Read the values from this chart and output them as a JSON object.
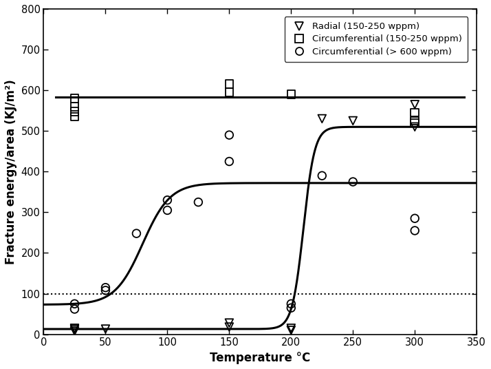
{
  "title": "",
  "xlabel": "Temperature °C",
  "ylabel": "Fracture energy/area (KJ/m²)",
  "xlim": [
    0,
    350
  ],
  "ylim": [
    0,
    800
  ],
  "xticks": [
    0,
    50,
    100,
    150,
    200,
    250,
    300,
    350
  ],
  "yticks": [
    0,
    100,
    200,
    300,
    400,
    500,
    600,
    700,
    800
  ],
  "dotted_line_y": 100,
  "radial_x": [
    25,
    25,
    25,
    50,
    150,
    150,
    200,
    200,
    225,
    250,
    300,
    300
  ],
  "radial_y": [
    15,
    8,
    12,
    13,
    28,
    18,
    15,
    10,
    530,
    525,
    565,
    510
  ],
  "circ_low_x": [
    25,
    25,
    25,
    25,
    150,
    150,
    200,
    300,
    300,
    300
  ],
  "circ_low_y": [
    580,
    560,
    548,
    535,
    615,
    595,
    590,
    545,
    525,
    520
  ],
  "circ_high_x": [
    25,
    25,
    50,
    50,
    75,
    100,
    100,
    125,
    150,
    150,
    200,
    200,
    225,
    250,
    300,
    300
  ],
  "circ_high_y": [
    75,
    62,
    115,
    108,
    248,
    330,
    305,
    325,
    490,
    425,
    75,
    65,
    390,
    375,
    285,
    255
  ],
  "curve1_x0": 80,
  "curve1_low": 73,
  "curve1_high": 372,
  "curve1_steepness": 0.09,
  "curve2_x0": 210,
  "curve2_low": 13,
  "curve2_high": 510,
  "curve2_steepness": 0.22,
  "flat_line_y": 584,
  "flat_line_x_start": 10,
  "flat_line_x_end": 340,
  "background_color": "#ffffff",
  "line_color": "#000000",
  "marker_color": "#000000",
  "marker_facecolor": "none"
}
